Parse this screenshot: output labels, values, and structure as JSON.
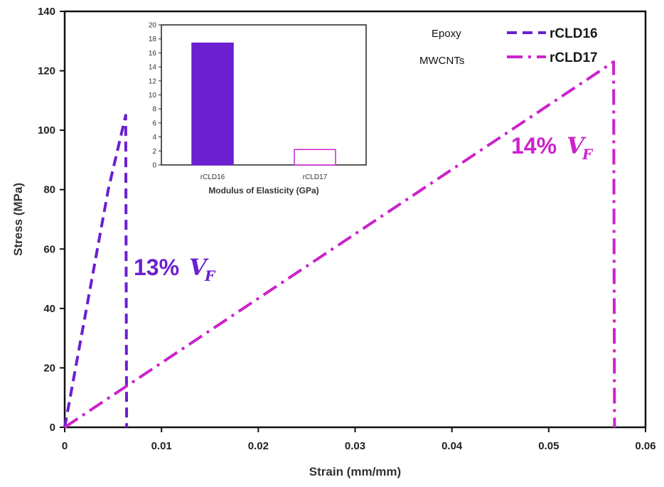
{
  "chart_data": [
    {
      "type": "line",
      "xlabel": "Strain (mm/mm)",
      "ylabel": "Stress (MPa)",
      "xlim": [
        0,
        0.06
      ],
      "ylim": [
        0,
        140
      ],
      "x_ticks": [
        "0",
        "0.01",
        "0.02",
        "0.03",
        "0.04",
        "0.05",
        "0.06"
      ],
      "y_ticks": [
        "0",
        "20",
        "40",
        "60",
        "80",
        "100",
        "120",
        "140"
      ],
      "grid": false,
      "legend_position": "top-right",
      "legend_notes": [
        "Epoxy",
        "MWCNTs"
      ],
      "series": [
        {
          "name": "rCLD16",
          "color": "#6a1fd0",
          "dash": "dashed",
          "points": [
            [
              0,
              0
            ],
            [
              0.0045,
              80
            ],
            [
              0.0063,
              105
            ],
            [
              0.0064,
              0
            ]
          ]
        },
        {
          "name": "rCLD17",
          "color": "#cc22cc",
          "dash": "dash-dot",
          "points": [
            [
              0,
              0
            ],
            [
              0.0567,
              123
            ],
            [
              0.0568,
              0
            ]
          ]
        }
      ],
      "annotations": [
        {
          "text": "13%",
          "var": "V",
          "sub": "F",
          "color": "#6a1fd0",
          "near_series": "rCLD16"
        },
        {
          "text": "14%",
          "var": "V",
          "sub": "F",
          "color": "#cc22cc",
          "near_series": "rCLD17"
        }
      ]
    },
    {
      "type": "bar",
      "xlabel": "Modulus of Elasticity (GPa)",
      "categories": [
        "rCLD16",
        "rCLD17"
      ],
      "values": [
        17.4,
        2.2
      ],
      "fill": [
        "#6a1fd0",
        "none"
      ],
      "stroke": [
        "#6a1fd0",
        "#cc22cc"
      ],
      "ylim": [
        0,
        20
      ],
      "y_ticks": [
        "0",
        "2",
        "4",
        "6",
        "8",
        "10",
        "12",
        "14",
        "16",
        "18",
        "20"
      ]
    }
  ]
}
